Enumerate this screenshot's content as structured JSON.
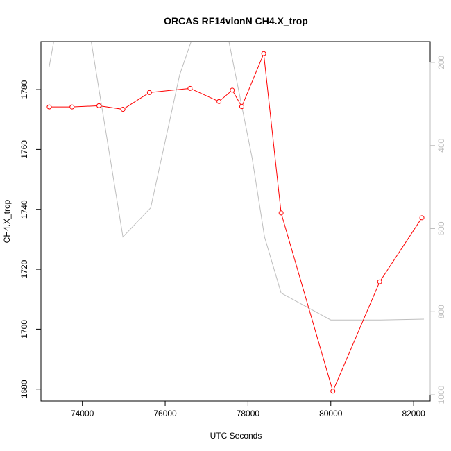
{
  "chart_data": {
    "type": "line",
    "title": "ORCAS RF14vlonN CH4.X_trop",
    "xlabel": "UTC Seconds",
    "ylabel": "CH4.X_trop",
    "xlim": [
      73000,
      82400
    ],
    "ylim": [
      1676,
      1796
    ],
    "x_ticks": [
      74000,
      76000,
      78000,
      80000,
      82000
    ],
    "y_ticks": [
      1680,
      1700,
      1720,
      1740,
      1760,
      1780
    ],
    "secondary_axis": {
      "side": "right",
      "ticks": [
        200,
        400,
        600,
        800,
        1000
      ],
      "lim": [
        1015,
        150
      ],
      "color": "#bebebe"
    },
    "series": [
      {
        "color": "#ff0000",
        "marker": "open-circle",
        "x": [
          73200,
          73750,
          74400,
          74980,
          75620,
          76600,
          77300,
          77620,
          77850,
          78380,
          78800,
          80050,
          81180,
          82200
        ],
        "y": [
          1774.2,
          1774.2,
          1774.6,
          1773.4,
          1779.0,
          1780.4,
          1776.0,
          1779.8,
          1774.3,
          1792.0,
          1738.8,
          1679.3,
          1715.8,
          1737.2
        ]
      },
      {
        "color": "#bebebe",
        "axis": "secondary",
        "x": [
          73200,
          73400,
          74100,
          74980,
          75650,
          76350,
          76800,
          77400,
          78100,
          78400,
          78800,
          80000,
          81200,
          82250
        ],
        "y": [
          210,
          100,
          80,
          620,
          550,
          230,
          100,
          80,
          430,
          620,
          755,
          820,
          820,
          818
        ]
      }
    ]
  }
}
